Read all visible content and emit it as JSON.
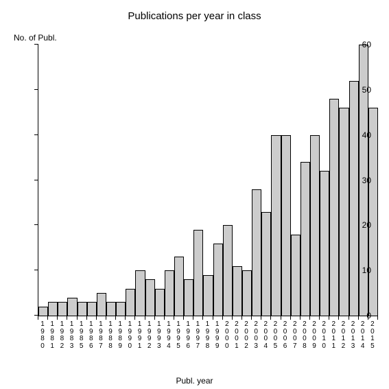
{
  "chart": {
    "type": "bar",
    "title": "Publications per year in class",
    "title_fontsize": 15,
    "y_axis_label": "No. of Publ.",
    "x_axis_label": "Publ. year",
    "label_fontsize": 12,
    "background_color": "#ffffff",
    "bar_fill": "#cccccc",
    "bar_border": "#000000",
    "axis_color": "#000000",
    "ylim": [
      0,
      60
    ],
    "yticks": [
      0,
      10,
      20,
      30,
      40,
      50,
      60
    ],
    "categories": [
      "1980",
      "1981",
      "1982",
      "1983",
      "1985",
      "1986",
      "1987",
      "1988",
      "1989",
      "1990",
      "1991",
      "1992",
      "1993",
      "1994",
      "1995",
      "1996",
      "1997",
      "1998",
      "1999",
      "2000",
      "2001",
      "2002",
      "2003",
      "2004",
      "2005",
      "2006",
      "2007",
      "2008",
      "2009",
      "2010",
      "2011",
      "2012",
      "2013",
      "2014",
      "2015"
    ],
    "values": [
      2,
      3,
      3,
      4,
      3,
      3,
      5,
      3,
      3,
      6,
      10,
      8,
      6,
      10,
      13,
      8,
      19,
      9,
      16,
      20,
      11,
      10,
      28,
      23,
      40,
      40,
      18,
      34,
      40,
      32,
      48,
      46,
      52,
      60,
      46
    ]
  }
}
